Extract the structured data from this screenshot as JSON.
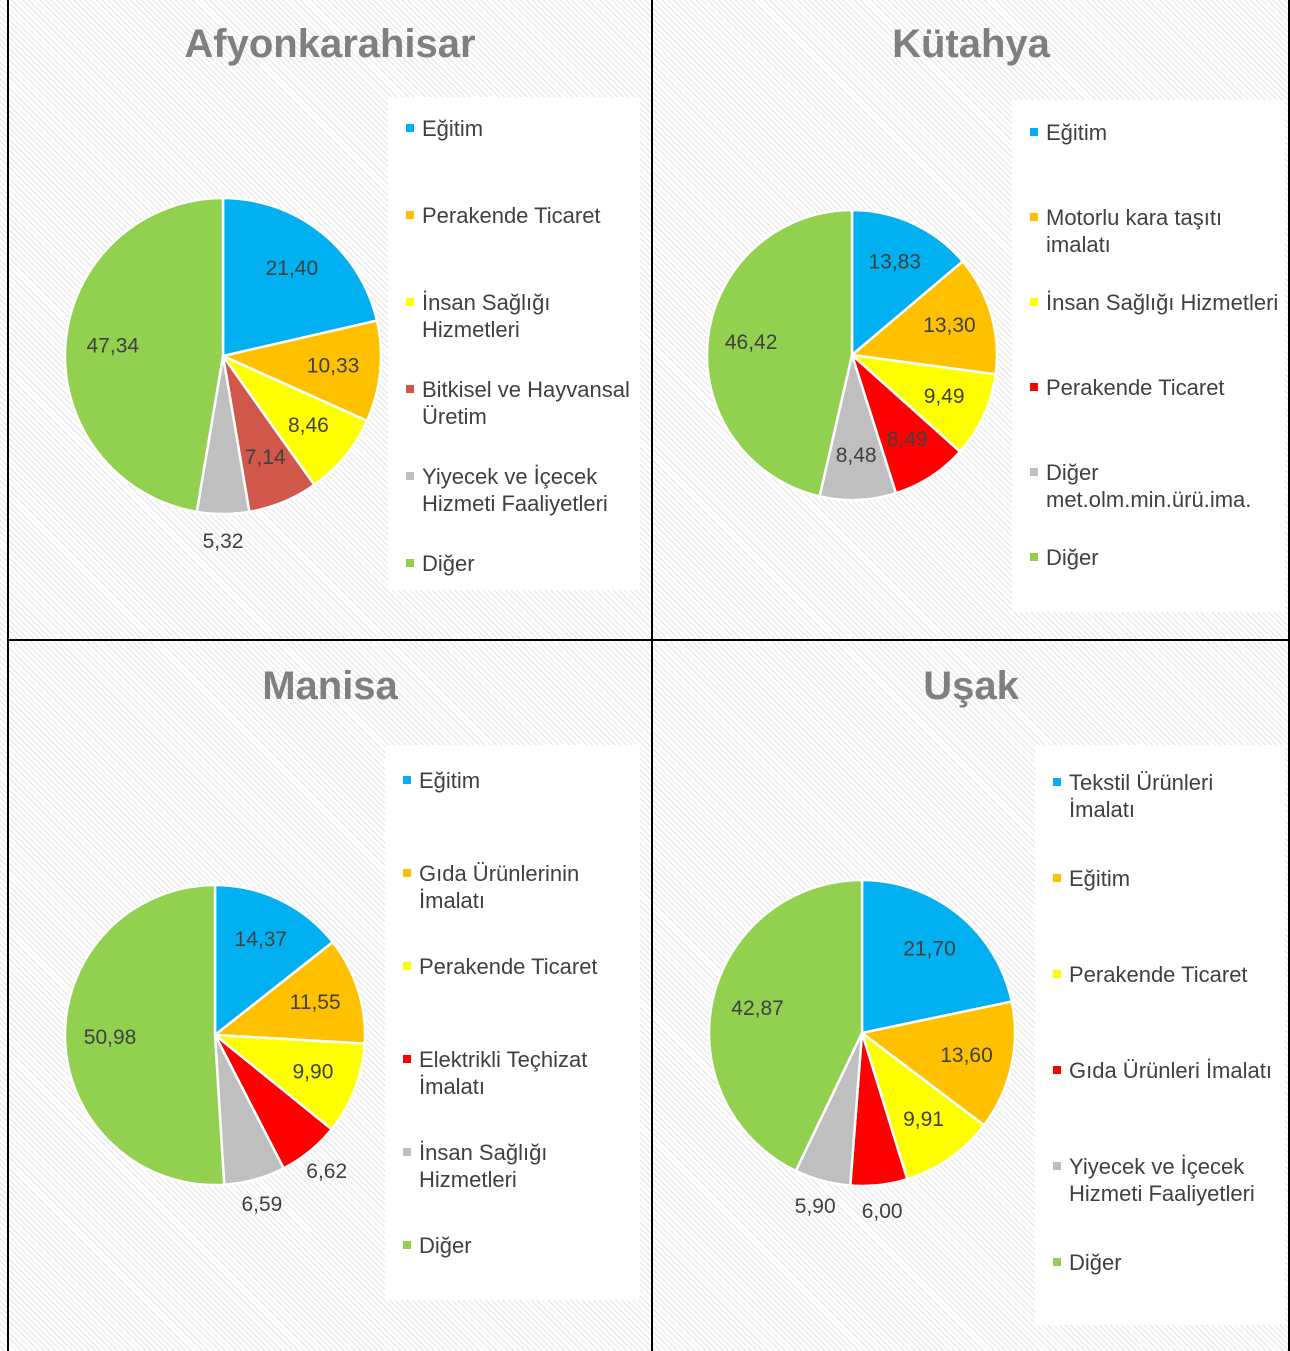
{
  "chart_data": [
    {
      "type": "pie",
      "title": "Afyonkarahisar",
      "categories": [
        "Eğitim",
        "Perakende Ticaret",
        "İnsan Sağlığı Hizmetleri",
        "Bitkisel ve Hayvansal Üretim",
        "Yiyecek ve İçecek Hizmeti Faaliyetleri",
        "Diğer"
      ],
      "values": [
        21.4,
        10.33,
        8.46,
        7.14,
        5.32,
        47.34
      ],
      "value_labels": [
        "21,40",
        "10,33",
        "8,46",
        "7,14",
        "5,32",
        "47,34"
      ],
      "colors": [
        "#00b0f0",
        "#ffc000",
        "#ffff00",
        "#d0574a",
        "#bfbfbf",
        "#92d050"
      ]
    },
    {
      "type": "pie",
      "title": "Kütahya",
      "categories": [
        "Eğitim",
        "Motorlu kara taşıtı imalatı",
        "İnsan Sağlığı Hizmetleri",
        "Perakende Ticaret",
        "Diğer met.olm.min.ürü.ima.",
        "Diğer"
      ],
      "values": [
        13.83,
        13.3,
        9.49,
        8.49,
        8.48,
        46.42
      ],
      "value_labels": [
        "13,83",
        "13,30",
        "9,49",
        "8,49",
        "8,48",
        "46,42"
      ],
      "colors": [
        "#00b0f0",
        "#ffc000",
        "#ffff00",
        "#ff0000",
        "#bfbfbf",
        "#92d050"
      ]
    },
    {
      "type": "pie",
      "title": "Manisa",
      "categories": [
        "Eğitim",
        "Gıda Ürünlerinin İmalatı",
        "Perakende Ticaret",
        "Elektrikli Teçhizat İmalatı",
        "İnsan Sağlığı Hizmetleri",
        "Diğer"
      ],
      "values": [
        14.37,
        11.55,
        9.9,
        6.62,
        6.59,
        50.98
      ],
      "value_labels": [
        "14,37",
        "11,55",
        "9,90",
        "6,62",
        "6,59",
        "50,98"
      ],
      "colors": [
        "#00b0f0",
        "#ffc000",
        "#ffff00",
        "#ff0000",
        "#bfbfbf",
        "#92d050"
      ]
    },
    {
      "type": "pie",
      "title": "Uşak",
      "categories": [
        "Tekstil Ürünleri İmalatı",
        "Eğitim",
        "Perakende Ticaret",
        "Gıda Ürünleri İmalatı",
        "Yiyecek ve İçecek Hizmeti Faaliyetleri",
        "Diğer"
      ],
      "values": [
        21.7,
        13.6,
        9.91,
        6.0,
        5.9,
        42.87
      ],
      "value_labels": [
        "21,70",
        "13,60",
        "9,91",
        "6,00",
        "5,90",
        "42,87"
      ],
      "colors": [
        "#00b0f0",
        "#ffc000",
        "#ffff00",
        "#ff0000",
        "#bfbfbf",
        "#92d050"
      ]
    }
  ]
}
